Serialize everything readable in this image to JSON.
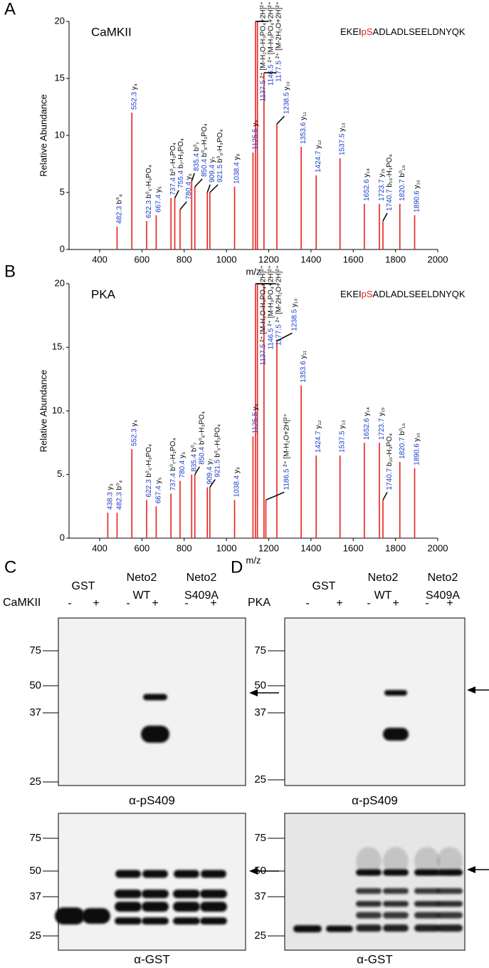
{
  "chart_data": [
    {
      "type": "bar",
      "panel": "A",
      "title": "CaMKII",
      "peptide": {
        "before": "EKEI",
        "site": "pS",
        "after": "ADLADLSEELDNYQK"
      },
      "x_label": "m/z",
      "y_label": "Relative Abundance",
      "xlim": [
        255,
        2000
      ],
      "ylim": [
        0,
        20
      ],
      "xticks": [
        400,
        600,
        800,
        1000,
        1200,
        1400,
        1600,
        1800,
        2000
      ],
      "yticks": [
        0,
        5,
        10,
        15,
        20
      ],
      "color": "#e8201e",
      "label_color": "#1a3cc8",
      "x": [
        482.3,
        552.3,
        622.3,
        667.4,
        737.4,
        755.4,
        780.4,
        835.4,
        850.4,
        909.4,
        921.5,
        1038.4,
        1125.5,
        1137.5,
        1146.5,
        1177.5,
        1238.5,
        1353.6,
        1424.7,
        1537.5,
        1652.6,
        1723.7,
        1740.7,
        1820.7,
        1890.6
      ],
      "values": [
        2,
        12,
        2.5,
        3,
        4.5,
        4.5,
        3.5,
        6,
        5.5,
        5,
        5,
        5.5,
        8.5,
        20,
        20,
        15.5,
        11,
        9,
        6.5,
        8,
        4,
        4,
        2.5,
        4,
        3
      ],
      "ions": [
        "b⁰₄",
        "y₄",
        "b⁰₆-H₃PO₄",
        "y₅",
        "b⁰₇-H₃PO₄",
        "b₇-H₃PO₄",
        "y₆",
        "b⁰₇",
        "b⁰₈-H₃PO₄",
        "y₇",
        "b⁰₉-H₃PO₄",
        "y₈",
        "y₉",
        "²⁺ [M-H₂O-H₃PO₄+2H]²⁺",
        "²⁺ [M-H₃PO₄+2H]²⁺",
        "²⁺ [M-2H₂O+2H]²⁺",
        "y₁₀",
        "y₁₁",
        "y₁₂",
        "y₁₃",
        "y₁₄",
        "y₁₅",
        "b₁₆-H₃PO₄",
        "b⁰₁₆",
        "y₁₆"
      ]
    },
    {
      "type": "bar",
      "panel": "B",
      "title": "PKA",
      "peptide": {
        "before": "EKEI",
        "site": "pS",
        "after": "ADLADLSEELDNYQK"
      },
      "x_label": "m/z",
      "y_label": "Relative Abundance",
      "xlim": [
        255,
        2000
      ],
      "ylim": [
        0,
        20
      ],
      "xticks": [
        400,
        600,
        800,
        1000,
        1200,
        1400,
        1600,
        1800,
        2000
      ],
      "yticks": [
        0,
        {
          "value": 5,
          "label": "5."
        },
        {
          "value": 10,
          "label": "10."
        },
        {
          "value": 15,
          "label": "15."
        },
        20
      ],
      "color": "#e8201e",
      "label_color": "#1a3cc8",
      "x": [
        438.3,
        482.3,
        552.3,
        622.3,
        667.4,
        737.4,
        780.4,
        835.4,
        850.4,
        909.4,
        921.5,
        1038.4,
        1125.5,
        1137.5,
        1146.5,
        1177.5,
        1186.5,
        1238.5,
        1353.6,
        1424.7,
        1537.5,
        1652.6,
        1723.7,
        1740.7,
        1820.7,
        1890.6
      ],
      "values": [
        2,
        2,
        7,
        3,
        2.5,
        3.5,
        4.5,
        5,
        5,
        4,
        4,
        3,
        8,
        20,
        20,
        20,
        3,
        15.5,
        12,
        6.5,
        6.5,
        7.5,
        7.5,
        3,
        6,
        5.5
      ],
      "ions": [
        "y₃",
        "b⁰₄",
        "y₄",
        "b⁰₆-H₃PO₄",
        "y₅",
        "b⁰₇-H₃PO₄",
        "y₆",
        "b⁰₇",
        "b⁰₈-H₃PO₄",
        "y₇",
        "b⁰₉-H₃PO₄",
        "y₈",
        "y₉",
        "²⁺ [M-H₂O-H₃PO₄+2H]²⁺",
        "²⁺ [M-H₃PO₄+2H]²⁺",
        "²⁺ [M-2H₂O+2H]²⁺",
        "²⁺ [M-H₂O+2H]²⁺",
        "y₁₀",
        "y₁₁",
        "y₁₂",
        "y₁₃",
        "y₁₄",
        "y₁₅",
        "b₁₆-H₃PO₄",
        "b⁰₁₆",
        "y₁₆"
      ]
    }
  ],
  "blots": [
    {
      "panel": "C",
      "enzyme": "CaMKII",
      "groups": [
        [
          "GST"
        ],
        [
          "Neto2",
          "WT"
        ],
        [
          "Neto2",
          "S409A"
        ]
      ],
      "signs": [
        "-",
        "+",
        "-",
        "+",
        "-",
        "+"
      ],
      "markers_top": [
        "75",
        "50",
        "37",
        "25"
      ],
      "markers_bottom": [
        "75",
        "50",
        "37",
        "25"
      ],
      "antibodies": [
        "α-pS409",
        "α-GST"
      ]
    },
    {
      "panel": "D",
      "enzyme": "PKA",
      "groups": [
        [
          "GST"
        ],
        [
          "Neto2",
          "WT"
        ],
        [
          "Neto2",
          "S409A"
        ]
      ],
      "signs": [
        "-",
        "+",
        "-",
        "+",
        "-",
        "+"
      ],
      "markers_top": [
        "75",
        "50",
        "37",
        "25"
      ],
      "markers_bottom": [
        "75",
        "50",
        "37",
        "25"
      ],
      "antibodies": [
        "α-pS409",
        "α-GST"
      ]
    }
  ]
}
